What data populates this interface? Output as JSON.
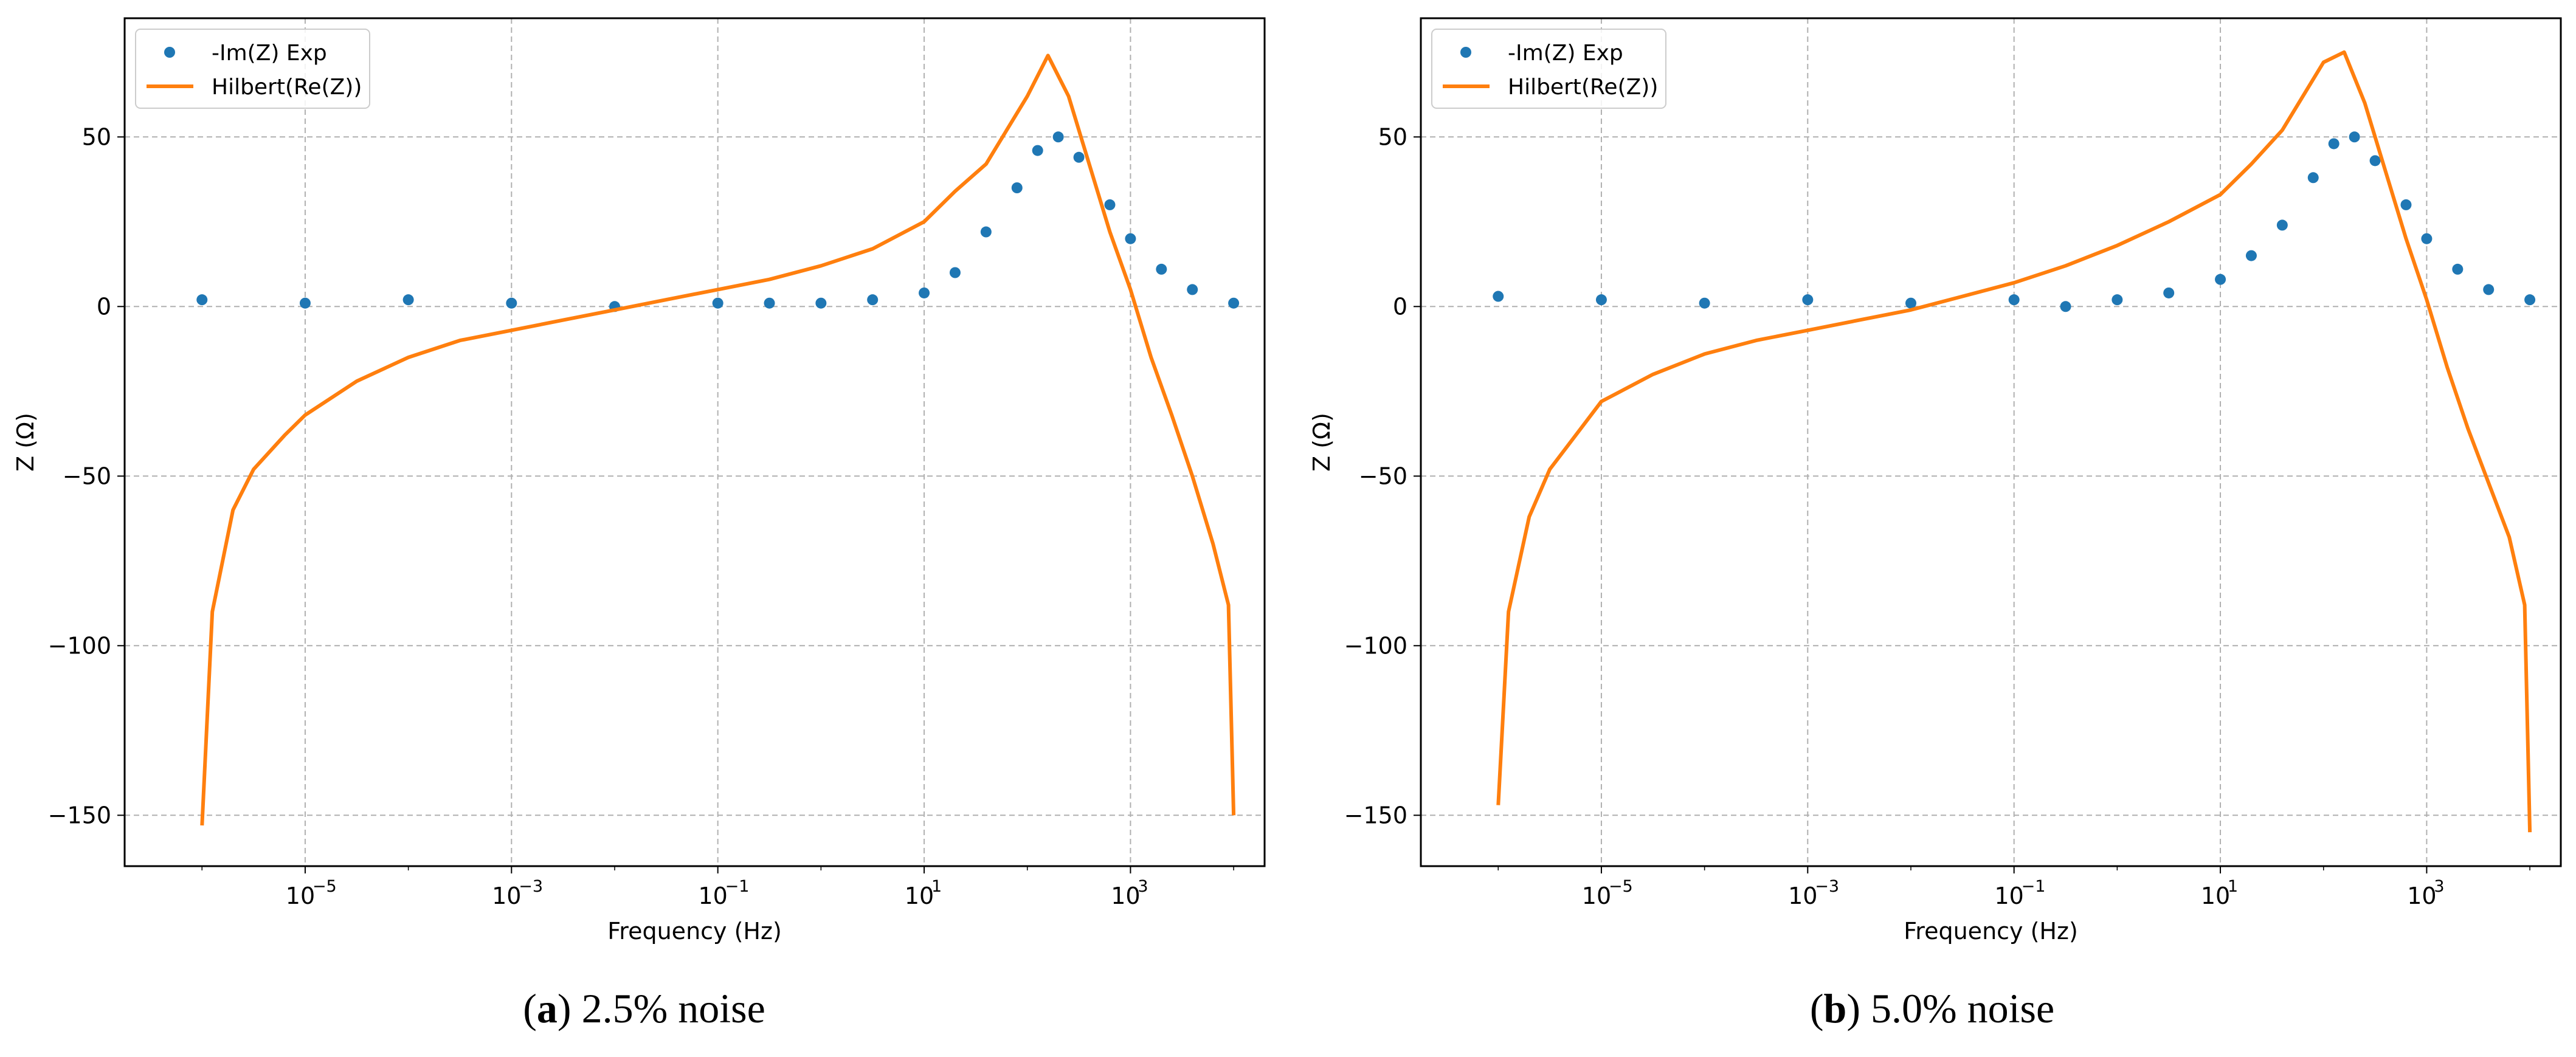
{
  "chart_data": [
    {
      "type": "scatter",
      "panel": "a",
      "title": "",
      "xlabel": "Frequency (Hz)",
      "ylabel": "Z (Ω)",
      "xscale": "log",
      "xlim_log10": [
        -6.75,
        4.3
      ],
      "ylim": [
        -165,
        85
      ],
      "yticks": [
        50,
        0,
        -50,
        -100,
        -150
      ],
      "ytick_labels": [
        "50",
        "0",
        "−50",
        "−100",
        "−150"
      ],
      "xticks_log10": [
        -5,
        -3,
        -1,
        1,
        3
      ],
      "xtick_labels": [
        "10",
        "10",
        "10",
        "10",
        "10"
      ],
      "xtick_exponents": [
        "−5",
        "−3",
        "−1",
        "1",
        "3"
      ],
      "grid": true,
      "legend_location": "upper-left",
      "series": [
        {
          "name": "-Im(Z) Exp",
          "kind": "scatter",
          "color": "#1f77b4",
          "log10_x": [
            -6.0,
            -5.0,
            -4.0,
            -3.0,
            -2.0,
            -1.0,
            -0.5,
            0.0,
            0.5,
            1.0,
            1.3,
            1.6,
            1.9,
            2.1,
            2.3,
            2.5,
            2.8,
            3.0,
            3.3,
            3.6,
            4.0
          ],
          "y": [
            2,
            1,
            2,
            1,
            0,
            1,
            1,
            1,
            2,
            4,
            10,
            22,
            35,
            46,
            50,
            44,
            30,
            20,
            11,
            5,
            1
          ]
        },
        {
          "name": "Hilbert(Re(Z))",
          "kind": "line",
          "color": "#ff7f0e",
          "log10_x": [
            -6.0,
            -5.9,
            -5.7,
            -5.5,
            -5.2,
            -5.0,
            -4.5,
            -4.0,
            -3.5,
            -3.0,
            -2.5,
            -2.0,
            -1.5,
            -1.0,
            -0.5,
            0.0,
            0.5,
            1.0,
            1.3,
            1.6,
            1.8,
            2.0,
            2.2,
            2.4,
            2.6,
            2.8,
            3.0,
            3.2,
            3.4,
            3.6,
            3.8,
            3.95,
            4.0
          ],
          "y": [
            -153,
            -90,
            -60,
            -48,
            -38,
            -32,
            -22,
            -15,
            -10,
            -7,
            -4,
            -1,
            2,
            5,
            8,
            12,
            17,
            25,
            34,
            42,
            52,
            62,
            74,
            62,
            42,
            22,
            5,
            -15,
            -32,
            -50,
            -70,
            -88,
            -150
          ]
        }
      ]
    },
    {
      "type": "scatter",
      "panel": "b",
      "title": "",
      "xlabel": "Frequency (Hz)",
      "ylabel": "Z (Ω)",
      "xscale": "log",
      "xlim_log10": [
        -6.75,
        4.3
      ],
      "ylim": [
        -165,
        85
      ],
      "yticks": [
        50,
        0,
        -50,
        -100,
        -150
      ],
      "ytick_labels": [
        "50",
        "0",
        "−50",
        "−100",
        "−150"
      ],
      "xticks_log10": [
        -5,
        -3,
        -1,
        1,
        3
      ],
      "xtick_labels": [
        "10",
        "10",
        "10",
        "10",
        "10"
      ],
      "xtick_exponents": [
        "−5",
        "−3",
        "−1",
        "1",
        "3"
      ],
      "grid": true,
      "legend_location": "upper-left",
      "series": [
        {
          "name": "-Im(Z) Exp",
          "kind": "scatter",
          "color": "#1f77b4",
          "log10_x": [
            -6.0,
            -5.0,
            -4.0,
            -3.0,
            -2.0,
            -1.0,
            -0.5,
            0.0,
            0.5,
            1.0,
            1.3,
            1.6,
            1.9,
            2.1,
            2.3,
            2.5,
            2.8,
            3.0,
            3.3,
            3.6,
            4.0
          ],
          "y": [
            3,
            2,
            1,
            2,
            1,
            2,
            0,
            2,
            4,
            8,
            15,
            24,
            38,
            48,
            50,
            43,
            30,
            20,
            11,
            5,
            2
          ]
        },
        {
          "name": "Hilbert(Re(Z))",
          "kind": "line",
          "color": "#ff7f0e",
          "log10_x": [
            -6.0,
            -5.9,
            -5.7,
            -5.5,
            -5.2,
            -5.0,
            -4.5,
            -4.0,
            -3.5,
            -3.0,
            -2.5,
            -2.0,
            -1.5,
            -1.0,
            -0.5,
            0.0,
            0.5,
            1.0,
            1.3,
            1.6,
            1.8,
            2.0,
            2.2,
            2.4,
            2.6,
            2.8,
            3.0,
            3.2,
            3.4,
            3.6,
            3.8,
            3.95,
            4.0
          ],
          "y": [
            -147,
            -90,
            -62,
            -48,
            -36,
            -28,
            -20,
            -14,
            -10,
            -7,
            -4,
            -1,
            3,
            7,
            12,
            18,
            25,
            33,
            42,
            52,
            62,
            72,
            75,
            60,
            40,
            20,
            2,
            -18,
            -36,
            -52,
            -68,
            -88,
            -155
          ]
        }
      ]
    }
  ],
  "captions": [
    {
      "label": "a",
      "text": "2.5% noise"
    },
    {
      "label": "b",
      "text": "5.0% noise"
    }
  ]
}
